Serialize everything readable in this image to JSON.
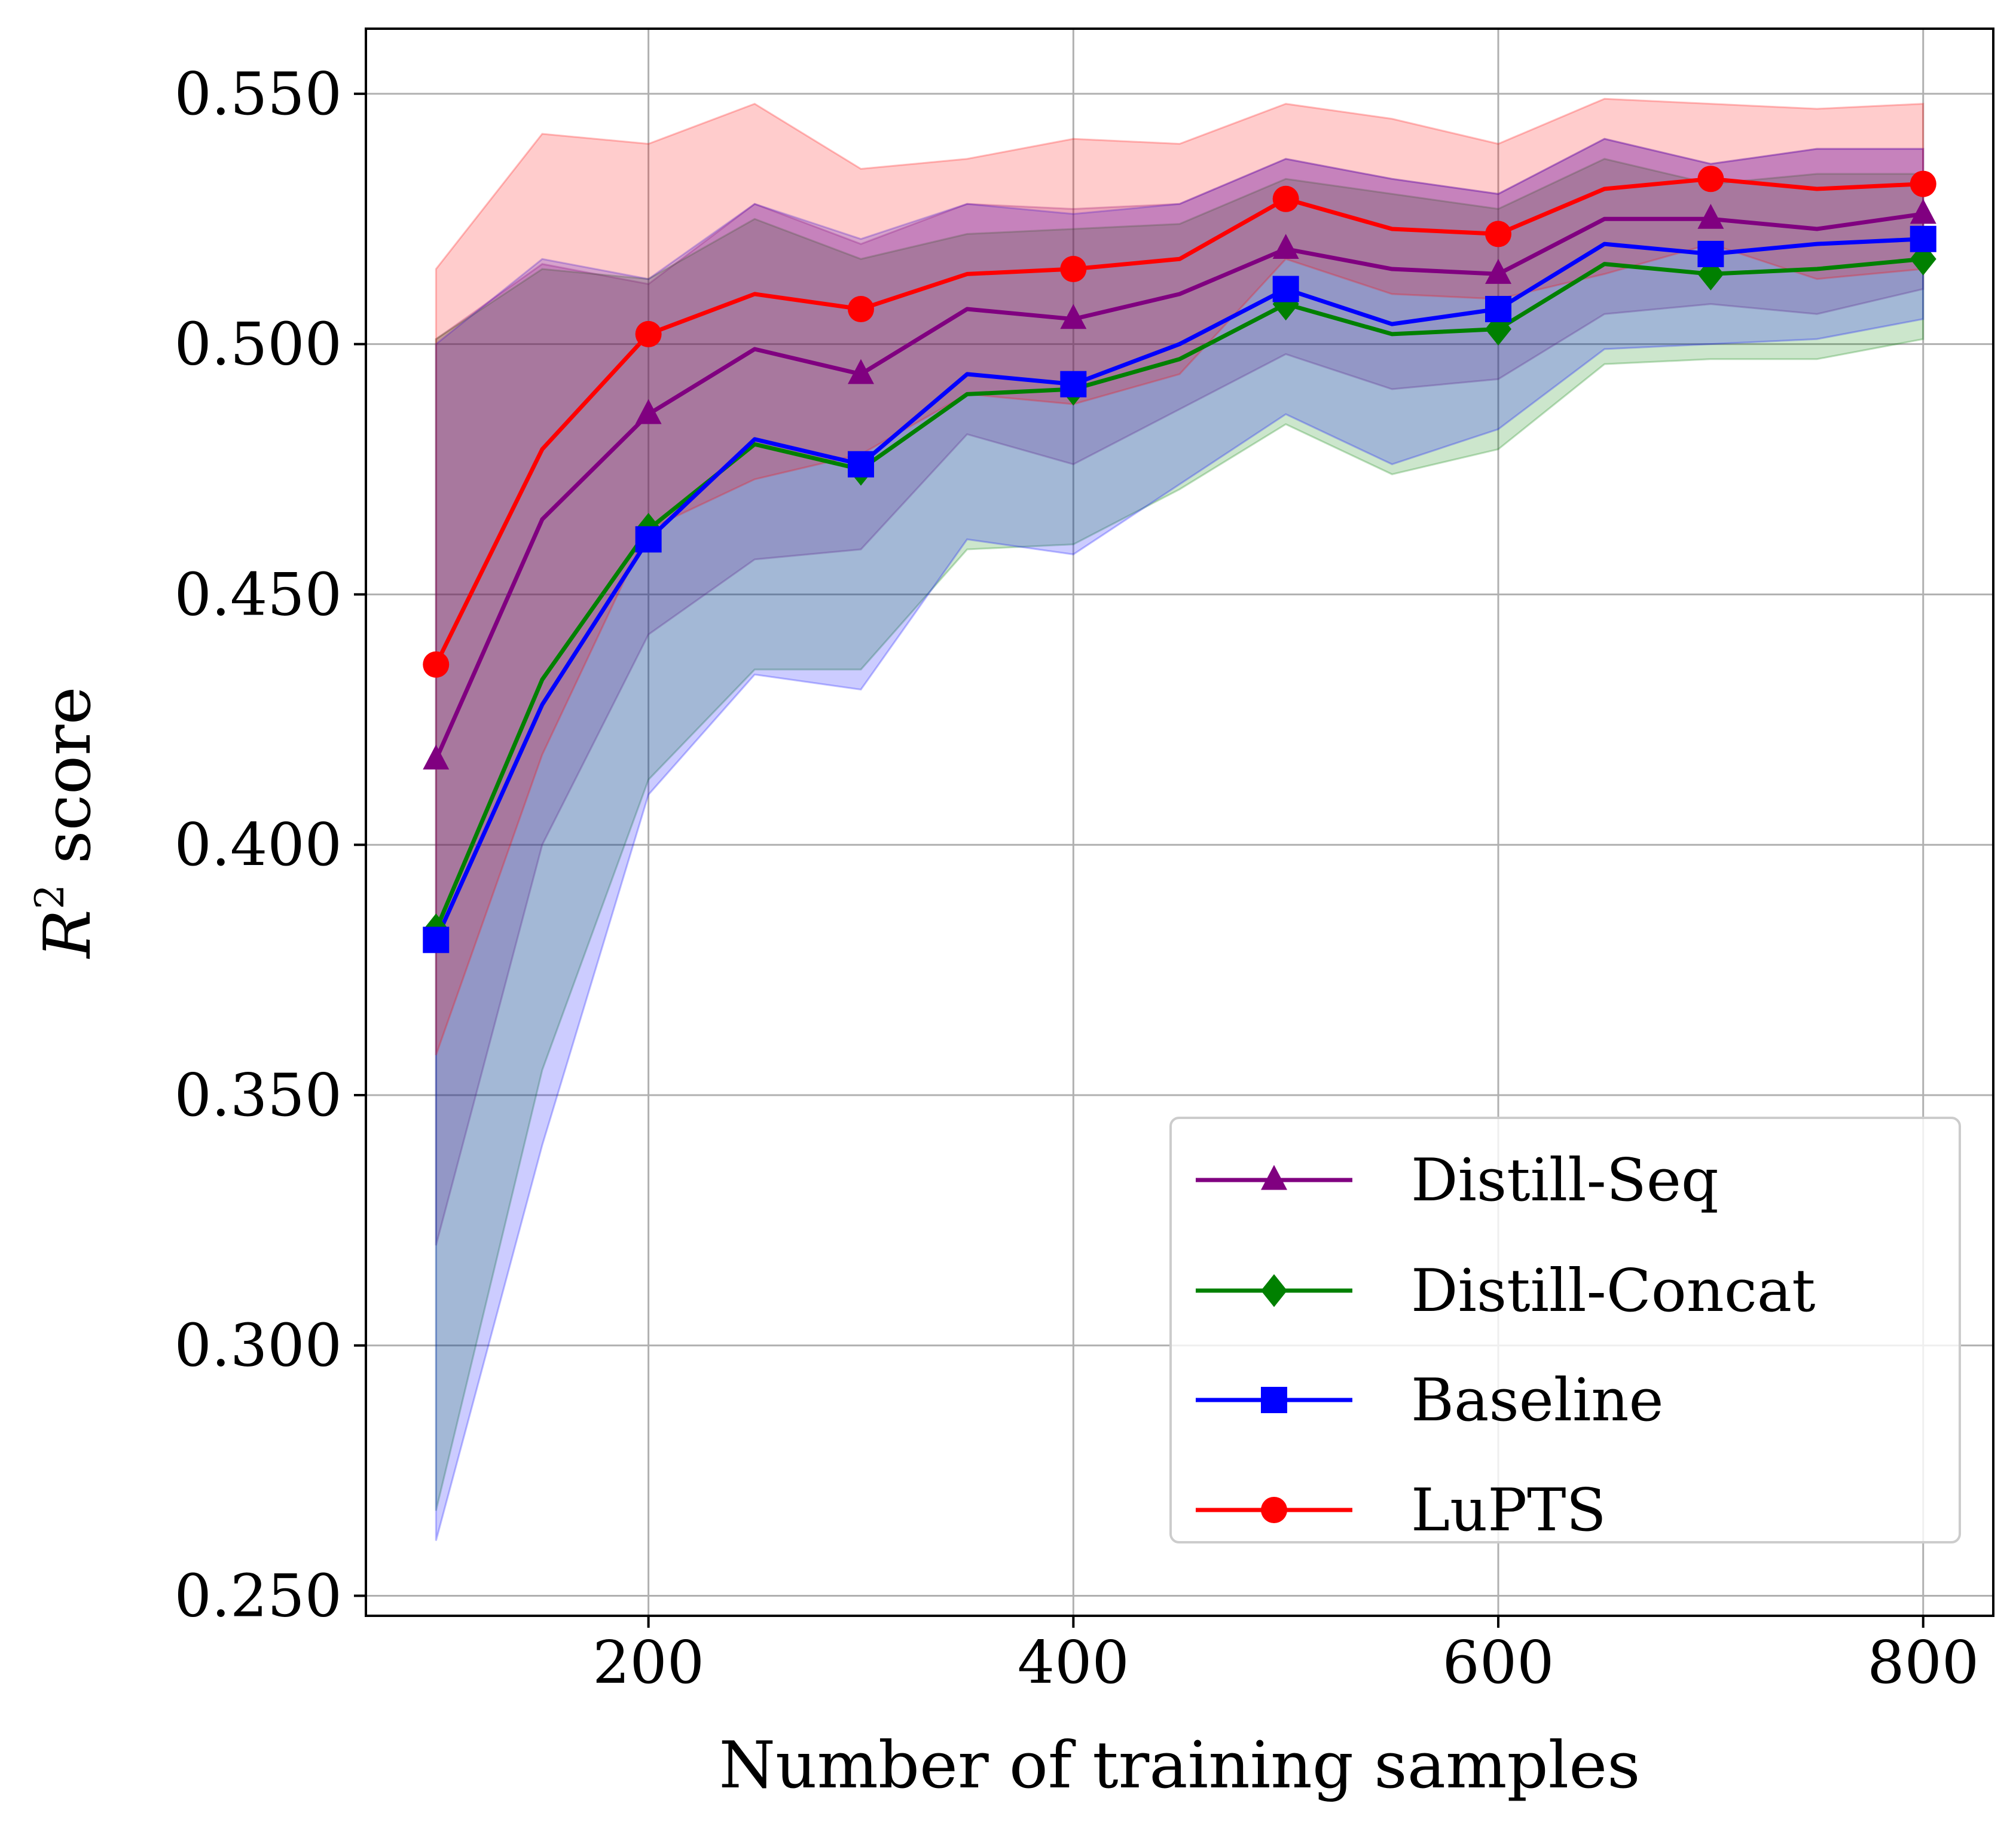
{
  "chart_data": {
    "type": "line",
    "xlabel": "Number of training samples",
    "ylabel_main": "R",
    "ylabel_sup": "2",
    "ylabel_rest": " score",
    "xlim": [
      67,
      833
    ],
    "ylim": [
      0.246,
      0.563
    ],
    "xticks": [
      200,
      400,
      600,
      800
    ],
    "yticks": [
      0.25,
      0.3,
      0.35,
      0.4,
      0.45,
      0.5,
      0.55
    ],
    "ytick_labels": [
      "0.250",
      "0.300",
      "0.350",
      "0.400",
      "0.450",
      "0.500",
      "0.550"
    ],
    "grid": true,
    "legend_position": "lower-right",
    "x": [
      100,
      150,
      200,
      250,
      300,
      350,
      400,
      450,
      500,
      550,
      600,
      650,
      700,
      750,
      800
    ],
    "series": [
      {
        "name": "Distill-Seq",
        "color": "#800080",
        "marker": "triangle",
        "values": [
          0.417,
          0.465,
          0.486,
          0.499,
          0.494,
          0.507,
          0.505,
          0.51,
          0.519,
          0.515,
          0.514,
          0.525,
          0.525,
          0.523,
          0.526
        ],
        "lower": [
          0.32,
          0.4,
          0.442,
          0.457,
          0.459,
          0.482,
          0.476,
          0.487,
          0.498,
          0.491,
          0.493,
          0.506,
          0.508,
          0.506,
          0.511
        ],
        "upper": [
          0.501,
          0.516,
          0.512,
          0.528,
          0.52,
          0.528,
          0.527,
          0.528,
          0.537,
          0.533,
          0.53,
          0.541,
          0.536,
          0.539,
          0.539
        ]
      },
      {
        "name": "Distill-Concat",
        "color": "#008000",
        "marker": "diamond",
        "values": [
          0.383,
          0.433,
          0.463,
          0.48,
          0.475,
          0.49,
          0.491,
          0.497,
          0.508,
          0.502,
          0.503,
          0.516,
          0.514,
          0.515,
          0.517
        ],
        "lower": [
          0.267,
          0.355,
          0.413,
          0.435,
          0.435,
          0.459,
          0.46,
          0.471,
          0.484,
          0.474,
          0.479,
          0.496,
          0.497,
          0.497,
          0.501
        ],
        "upper": [
          0.501,
          0.515,
          0.513,
          0.525,
          0.517,
          0.522,
          0.523,
          0.524,
          0.533,
          0.53,
          0.527,
          0.537,
          0.532,
          0.534,
          0.534
        ]
      },
      {
        "name": "Baseline",
        "color": "#0000ff",
        "marker": "square",
        "values": [
          0.381,
          0.428,
          0.461,
          0.481,
          0.476,
          0.494,
          0.492,
          0.5,
          0.511,
          0.504,
          0.507,
          0.52,
          0.518,
          0.52,
          0.521
        ],
        "lower": [
          0.261,
          0.34,
          0.41,
          0.434,
          0.431,
          0.461,
          0.458,
          0.472,
          0.486,
          0.476,
          0.483,
          0.499,
          0.5,
          0.501,
          0.505
        ],
        "upper": [
          0.5,
          0.517,
          0.513,
          0.528,
          0.521,
          0.528,
          0.526,
          0.528,
          0.537,
          0.533,
          0.53,
          0.541,
          0.536,
          0.539,
          0.539
        ]
      },
      {
        "name": "LuPTS",
        "color": "#ff0000",
        "marker": "circle",
        "values": [
          0.436,
          0.479,
          0.502,
          0.51,
          0.507,
          0.514,
          0.515,
          0.517,
          0.529,
          0.523,
          0.522,
          0.531,
          0.533,
          0.531,
          0.532
        ],
        "lower": [
          0.358,
          0.418,
          0.463,
          0.473,
          0.478,
          0.49,
          0.488,
          0.494,
          0.517,
          0.51,
          0.509,
          0.514,
          0.52,
          0.513,
          0.515
        ],
        "upper": [
          0.515,
          0.542,
          0.54,
          0.548,
          0.535,
          0.537,
          0.541,
          0.54,
          0.548,
          0.545,
          0.54,
          0.549,
          0.548,
          0.547,
          0.548
        ]
      }
    ],
    "legend_order": [
      0,
      1,
      2,
      3
    ]
  }
}
